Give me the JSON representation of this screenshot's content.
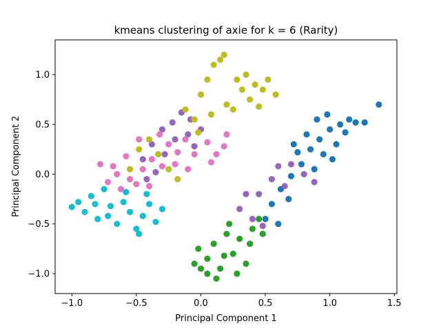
{
  "chart_data": {
    "type": "scatter",
    "title": "kmeans clustering of axie for k = 6 (Rarity)",
    "xlabel": "Principal Component 1",
    "ylabel": "Principal Component 2",
    "xlim": [
      -1.13,
      1.52
    ],
    "ylim": [
      -1.2,
      1.35
    ],
    "xticks": [
      -1.0,
      -0.5,
      0.0,
      0.5,
      1.0,
      1.5
    ],
    "xtick_labels": [
      "−1.0",
      "−0.5",
      "0.0",
      "0.5",
      "1.0",
      "1.5"
    ],
    "yticks": [
      -1.0,
      -0.5,
      0.0,
      0.5,
      1.0
    ],
    "ytick_labels": [
      "−1.0",
      "−0.5",
      "0.0",
      "0.5",
      "1.0"
    ],
    "grid": false,
    "legend": "none",
    "marker": "circle",
    "series": [
      {
        "color": "#1f77b4",
        "points": [
          [
            0.5,
            -0.45
          ],
          [
            0.55,
            -0.3
          ],
          [
            0.62,
            -0.15
          ],
          [
            0.7,
            -0.02
          ],
          [
            0.78,
            0.1
          ],
          [
            0.85,
            0.25
          ],
          [
            0.92,
            0.35
          ],
          [
            1.0,
            0.45
          ],
          [
            1.08,
            0.5
          ],
          [
            1.15,
            0.55
          ],
          [
            1.2,
            0.52
          ],
          [
            1.27,
            0.52
          ],
          [
            1.38,
            0.7
          ],
          [
            0.75,
            0.22
          ],
          [
            0.88,
            0.05
          ],
          [
            0.95,
            0.2
          ],
          [
            1.05,
            0.3
          ],
          [
            0.68,
            -0.25
          ],
          [
            0.6,
            -0.5
          ],
          [
            0.82,
            0.4
          ],
          [
            0.98,
            0.6
          ],
          [
            1.12,
            0.42
          ],
          [
            0.72,
            0.3
          ],
          [
            0.9,
            0.55
          ],
          [
            1.02,
            0.15
          ]
        ]
      },
      {
        "color": "#2ca02c",
        "points": [
          -0.05,
          -0.9,
          -0.02,
          -0.75,
          0.05,
          -0.85,
          0.1,
          -0.7,
          0.15,
          -0.95,
          0.2,
          -0.6,
          0.25,
          -0.8,
          0.3,
          -0.65,
          0.35,
          -0.9,
          0.4,
          -0.55,
          0.45,
          -0.45,
          0.12,
          -1.05,
          0.0,
          -0.95,
          0.22,
          -0.5,
          0.28,
          -1.0,
          0.38,
          -0.7,
          0.48,
          -0.6,
          0.05,
          -1.0,
          0.18,
          -0.82
        ]
      },
      {
        "color": "#9467bd",
        "points": [
          [
            0.3,
            -0.35
          ],
          [
            0.4,
            -0.45
          ],
          [
            0.45,
            -0.2
          ],
          [
            0.55,
            -0.05
          ],
          [
            0.6,
            0.08
          ],
          [
            0.7,
            0.1
          ],
          [
            0.8,
            0.0
          ],
          [
            0.88,
            -0.08
          ],
          [
            0.48,
            -0.52
          ],
          [
            0.35,
            -0.2
          ],
          [
            0.65,
            -0.12
          ],
          [
            -0.45,
            0.15
          ],
          [
            -0.38,
            0.3
          ],
          [
            -0.3,
            0.45
          ],
          [
            -0.22,
            0.52
          ],
          [
            -0.15,
            0.62
          ],
          [
            -0.08,
            0.55
          ],
          [
            -0.2,
            0.35
          ],
          [
            -0.28,
            0.2
          ],
          [
            -0.35,
            0.02
          ],
          [
            -0.1,
            0.4
          ],
          [
            0.0,
            0.45
          ],
          [
            -0.05,
            0.28
          ],
          [
            -0.42,
            -0.05
          ]
        ]
      },
      {
        "color": "#e377c2",
        "points": [
          [
            -0.78,
            0.1
          ],
          [
            -0.72,
            -0.08
          ],
          [
            -0.65,
            0.0
          ],
          [
            -0.58,
            0.18
          ],
          [
            -0.5,
            -0.1
          ],
          [
            -0.45,
            0.05
          ],
          [
            -0.38,
            0.15
          ],
          [
            -0.3,
            0.08
          ],
          [
            -0.25,
            0.3
          ],
          [
            -0.18,
            0.22
          ],
          [
            -0.12,
            0.35
          ],
          [
            -0.05,
            0.2
          ],
          [
            0.05,
            0.32
          ],
          [
            0.12,
            0.2
          ],
          [
            0.18,
            0.28
          ],
          [
            0.2,
            0.4
          ],
          [
            -0.62,
            -0.15
          ],
          [
            -0.55,
            -0.05
          ],
          [
            -0.4,
            -0.12
          ],
          [
            -0.32,
            0.4
          ],
          [
            -0.48,
            0.35
          ],
          [
            -0.2,
            0.1
          ],
          [
            -0.68,
            0.08
          ],
          [
            0.08,
            0.12
          ],
          [
            -0.1,
            0.05
          ]
        ]
      },
      {
        "color": "#bcbd22",
        "points": [
          [
            -0.55,
            0.05
          ],
          [
            -0.48,
            0.25
          ],
          [
            -0.4,
            0.35
          ],
          [
            -0.33,
            0.2
          ],
          [
            -0.25,
            0.05
          ],
          [
            -0.18,
            -0.05
          ],
          [
            -0.05,
            0.55
          ],
          [
            0.0,
            0.8
          ],
          [
            0.05,
            0.95
          ],
          [
            0.1,
            1.1
          ],
          [
            0.15,
            1.15
          ],
          [
            0.18,
            1.2
          ],
          [
            0.2,
            0.7
          ],
          [
            0.25,
            0.65
          ],
          [
            0.28,
            0.95
          ],
          [
            0.32,
            0.85
          ],
          [
            0.35,
            1.0
          ],
          [
            0.38,
            0.75
          ],
          [
            0.42,
            0.9
          ],
          [
            0.45,
            0.68
          ],
          [
            0.48,
            0.85
          ],
          [
            0.52,
            0.95
          ],
          [
            0.58,
            0.8
          ],
          [
            -0.12,
            0.65
          ],
          [
            -0.02,
            0.42
          ],
          [
            0.08,
            0.6
          ]
        ]
      },
      {
        "color": "#17becf",
        "points": [
          [
            -1.0,
            -0.33
          ],
          [
            -0.95,
            -0.28
          ],
          [
            -0.9,
            -0.38
          ],
          [
            -0.85,
            -0.22
          ],
          [
            -0.8,
            -0.45
          ],
          [
            -0.75,
            -0.15
          ],
          [
            -0.7,
            -0.32
          ],
          [
            -0.65,
            -0.5
          ],
          [
            -0.6,
            -0.28
          ],
          [
            -0.55,
            -0.38
          ],
          [
            -0.5,
            -0.55
          ],
          [
            -0.45,
            -0.42
          ],
          [
            -0.4,
            -0.3
          ],
          [
            -0.35,
            -0.48
          ],
          [
            -0.3,
            -0.35
          ],
          [
            -0.48,
            -0.6
          ],
          [
            -0.72,
            -0.42
          ],
          [
            -0.58,
            -0.18
          ],
          [
            -0.82,
            -0.3
          ],
          [
            -0.42,
            -0.2
          ]
        ]
      }
    ]
  }
}
